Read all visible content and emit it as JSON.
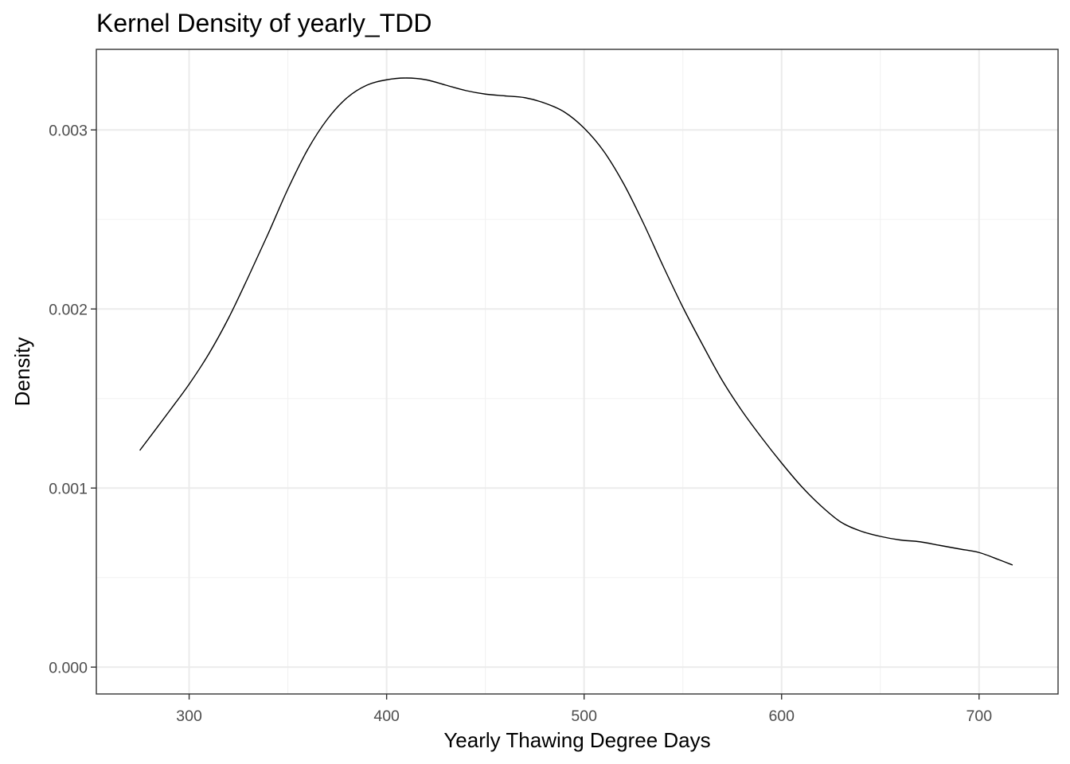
{
  "chart_data": {
    "type": "line",
    "title": "Kernel Density of yearly_TDD",
    "xlabel": "Yearly Thawing Degree Days",
    "ylabel": "Density",
    "xlim": [
      253,
      740
    ],
    "ylim": [
      -0.00015,
      0.00345
    ],
    "x_ticks": [
      300,
      400,
      500,
      600,
      700
    ],
    "x_tick_labels": [
      "300",
      "400",
      "500",
      "600",
      "700"
    ],
    "x_minor_ticks": [
      350,
      450,
      550,
      650
    ],
    "y_ticks": [
      0.0,
      0.001,
      0.002,
      0.003
    ],
    "y_tick_labels": [
      "0.000",
      "0.001",
      "0.002",
      "0.003"
    ],
    "y_minor_ticks": [
      0.0005,
      0.0015,
      0.0025
    ],
    "grid": true,
    "legend": "none",
    "series": [
      {
        "color": "#000000",
        "x": [
          275,
          290,
          300,
          310,
          320,
          330,
          340,
          350,
          360,
          370,
          380,
          390,
          400,
          410,
          420,
          430,
          440,
          450,
          460,
          470,
          480,
          490,
          500,
          510,
          520,
          530,
          540,
          550,
          560,
          570,
          580,
          590,
          600,
          610,
          620,
          630,
          640,
          650,
          660,
          670,
          680,
          690,
          700,
          710,
          717
        ],
        "y": [
          0.00121,
          0.00143,
          0.00158,
          0.00175,
          0.00195,
          0.00218,
          0.00242,
          0.00267,
          0.00289,
          0.00306,
          0.00318,
          0.00325,
          0.00328,
          0.00329,
          0.00328,
          0.00325,
          0.00322,
          0.0032,
          0.00319,
          0.00318,
          0.00315,
          0.0031,
          0.00301,
          0.00288,
          0.0027,
          0.00248,
          0.00224,
          0.00201,
          0.0018,
          0.0016,
          0.00143,
          0.00128,
          0.00114,
          0.00101,
          0.0009,
          0.00081,
          0.00076,
          0.00073,
          0.00071,
          0.0007,
          0.00068,
          0.00066,
          0.00064,
          0.0006,
          0.00057
        ]
      }
    ]
  }
}
